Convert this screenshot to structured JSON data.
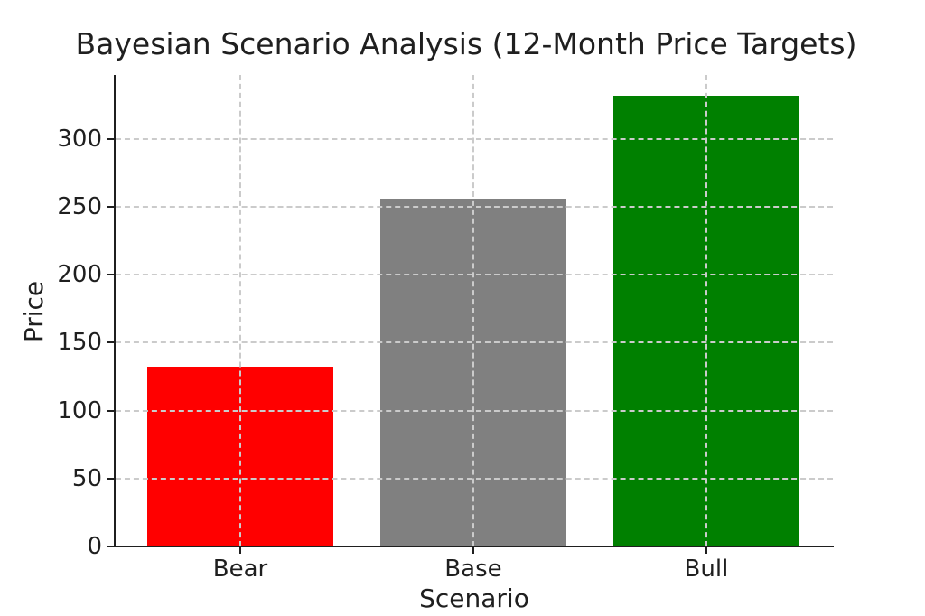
{
  "chart_data": {
    "type": "bar",
    "title": "Bayesian Scenario Analysis (12-Month Price Targets)",
    "xlabel": "Scenario",
    "ylabel": "Price",
    "categories": [
      "Bear",
      "Base",
      "Bull"
    ],
    "values": [
      132,
      256,
      332
    ],
    "bar_colors": [
      "#ff0000",
      "#808080",
      "#008000"
    ],
    "yticks": [
      0,
      50,
      100,
      150,
      200,
      250,
      300
    ],
    "ylim": [
      0,
      347
    ],
    "grid": {
      "style": "dashed",
      "color": "#cbcbcb",
      "x": true,
      "y": true,
      "drawn_above_bars": true
    },
    "legend": "none",
    "spines": [
      "left",
      "bottom"
    ],
    "text_color": "#1f1f1f",
    "background_color": "#ffffff"
  }
}
